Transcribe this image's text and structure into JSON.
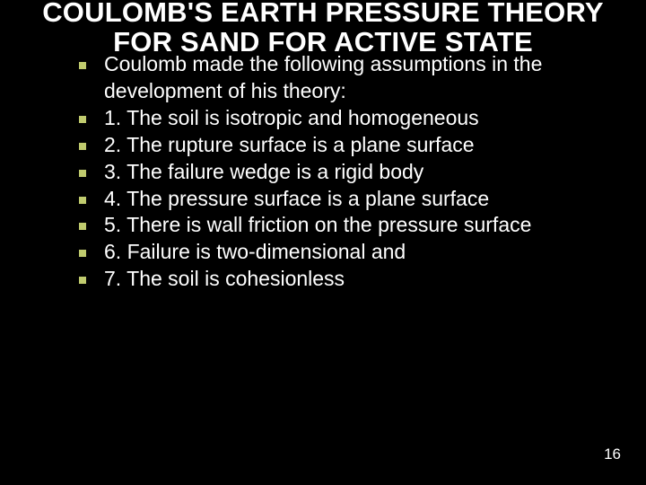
{
  "title": "COULOMB'S EARTH PRESSURE THEORY FOR SAND FOR ACTIVE STATE",
  "items": [
    "Coulomb made the following assumptions in the development of his theory:",
    "1. The soil is isotropic and homogeneous",
    "2. The rupture surface is a plane surface",
    "3. The failure wedge is a rigid body",
    "4. The pressure surface is a plane surface",
    "5. There is wall friction on the pressure surface",
    "6. Failure is two-dimensional and",
    "7. The soil is cohesionless"
  ],
  "pageNumber": "16",
  "colors": {
    "background": "#000000",
    "text": "#ffffff",
    "bullet": "#c0cb6e"
  },
  "typography": {
    "title_fontsize": 31,
    "body_fontsize": 23,
    "pagenum_fontsize": 17,
    "title_weight": "bold",
    "font_family": "Arial"
  }
}
